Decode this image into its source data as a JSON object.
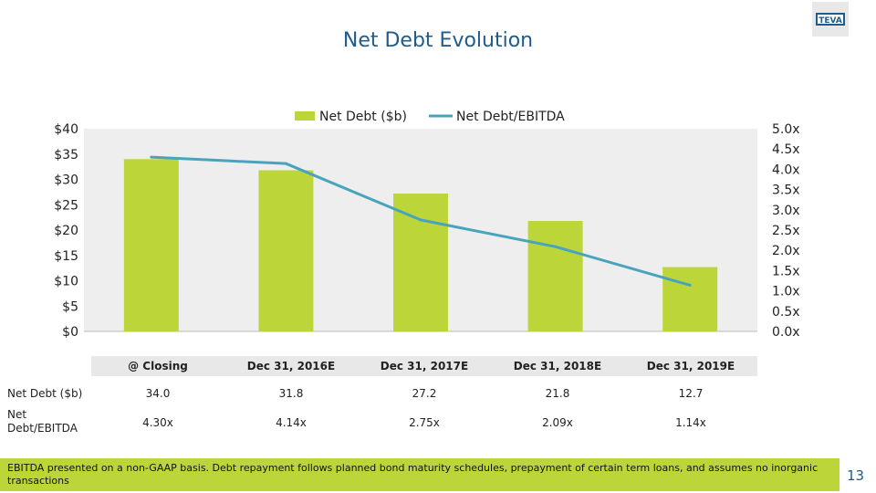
{
  "page": {
    "title": "Net Debt Evolution",
    "page_number": "13",
    "logo_text": "TEVA",
    "footnote": "EBITDA presented on a non-GAAP basis. Debt repayment follows planned bond maturity schedules, prepayment of certain term loans, and assumes no inorganic transactions"
  },
  "colors": {
    "bar": "#bcd63a",
    "line": "#4aa3bd",
    "plot_bg": "#eeeeee",
    "title": "#1f5c8b",
    "table_header_bg": "#e8e8e8"
  },
  "chart_data": {
    "type": "bar",
    "title": "",
    "categories": [
      "@ Closing",
      "Dec 31, 2016E",
      "Dec 31, 2017E",
      "Dec 31, 2018E",
      "Dec 31, 2019E"
    ],
    "series": [
      {
        "name": "Net Debt ($b)",
        "type": "bar",
        "axis": "left",
        "values": [
          34.0,
          31.8,
          27.2,
          21.8,
          12.7
        ]
      },
      {
        "name": "Net Debt/EBITDA",
        "type": "line",
        "axis": "right",
        "values": [
          4.3,
          4.14,
          2.75,
          2.09,
          1.14
        ]
      }
    ],
    "y_left": {
      "min": 0,
      "max": 40,
      "step": 5,
      "ticks": [
        "$0",
        "$5",
        "$10",
        "$15",
        "$20",
        "$25",
        "$30",
        "$35",
        "$40"
      ]
    },
    "y_right": {
      "min": 0,
      "max": 5,
      "step": 0.5,
      "ticks": [
        "0.0x",
        "0.5x",
        "1.0x",
        "1.5x",
        "2.0x",
        "2.5x",
        "3.0x",
        "3.5x",
        "4.0x",
        "4.5x",
        "5.0x"
      ]
    },
    "legend": [
      "Net Debt ($b)",
      "Net Debt/EBITDA"
    ],
    "legend_position": "top-center",
    "grid": false
  },
  "table": {
    "headers": [
      "@ Closing",
      "Dec 31, 2016E",
      "Dec 31, 2017E",
      "Dec 31, 2018E",
      "Dec 31, 2019E"
    ],
    "rows": [
      {
        "label": "Net Debt ($b)",
        "values": [
          "34.0",
          "31.8",
          "27.2",
          "21.8",
          "12.7"
        ]
      },
      {
        "label": "Net Debt/EBITDA",
        "values": [
          "4.30x",
          "4.14x",
          "2.75x",
          "2.09x",
          "1.14x"
        ]
      }
    ]
  }
}
